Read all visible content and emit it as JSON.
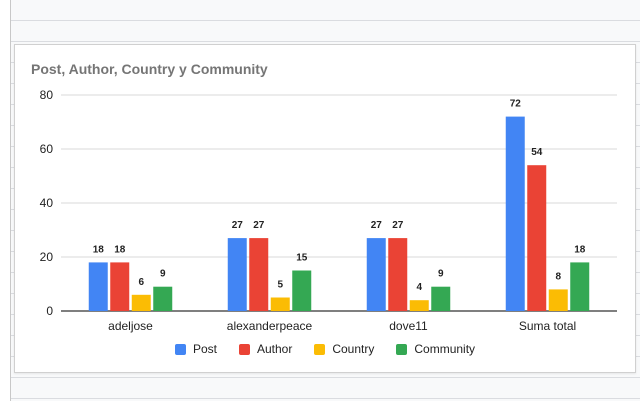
{
  "chart_data": {
    "type": "bar",
    "title": "Post, Author, Country y Community",
    "categories": [
      "adeljose",
      "alexanderpeace",
      "dove11",
      "Suma total"
    ],
    "series": [
      {
        "name": "Post",
        "color": "#4285f4",
        "values": [
          18,
          27,
          27,
          72
        ]
      },
      {
        "name": "Author",
        "color": "#ea4335",
        "values": [
          18,
          27,
          27,
          54
        ]
      },
      {
        "name": "Country",
        "color": "#fbbc04",
        "values": [
          6,
          5,
          4,
          8
        ]
      },
      {
        "name": "Community",
        "color": "#34a853",
        "values": [
          9,
          15,
          9,
          18
        ]
      }
    ],
    "yticks": [
      0,
      20,
      40,
      60,
      80
    ],
    "ylim": [
      0,
      80
    ],
    "grid": true,
    "legend_position": "bottom"
  }
}
